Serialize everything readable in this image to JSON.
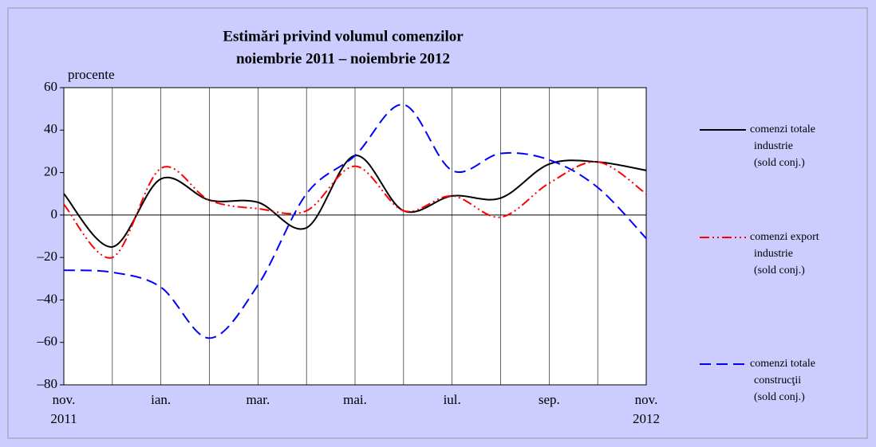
{
  "chart_data": {
    "type": "line",
    "title": "Estimări privind volumul comenzilor",
    "subtitle": "noiembrie 2011 – noiembrie 2012",
    "y_label": "procente",
    "categories": [
      "nov. 2011",
      null,
      "ian.",
      null,
      "mar.",
      null,
      "mai.",
      null,
      "iul.",
      null,
      "sep.",
      null,
      "nov. 2012"
    ],
    "ylim": [
      -80,
      60
    ],
    "yticks": [
      60,
      40,
      20,
      0,
      {
        "value": -20,
        "label": "–20"
      },
      {
        "value": -40,
        "label": "–40"
      },
      {
        "value": -60,
        "label": "–60"
      },
      {
        "value": -80,
        "label": "–80"
      }
    ],
    "grid": true,
    "legend": "right",
    "series": [
      {
        "name": "comenzi totale industrie (sold conj.)",
        "color": "#000000",
        "style": "solid",
        "values": [
          10,
          -15,
          17,
          7,
          6,
          -6,
          28,
          2,
          9,
          8,
          24,
          25,
          21
        ]
      },
      {
        "name": "comenzi export industrie (sold conj.)",
        "color": "#ff0000",
        "style": "dash-dot-dot",
        "values": [
          5,
          -20,
          22,
          7,
          3,
          2,
          23,
          2,
          9,
          -1,
          15,
          25,
          10
        ]
      },
      {
        "name": "comenzi totale construcţii (sold conj.)",
        "color": "#0000ff",
        "style": "dashed",
        "values": [
          -26,
          -27,
          -34,
          -58,
          -33,
          10,
          28,
          52,
          21,
          29,
          26,
          13,
          -11
        ]
      }
    ]
  }
}
